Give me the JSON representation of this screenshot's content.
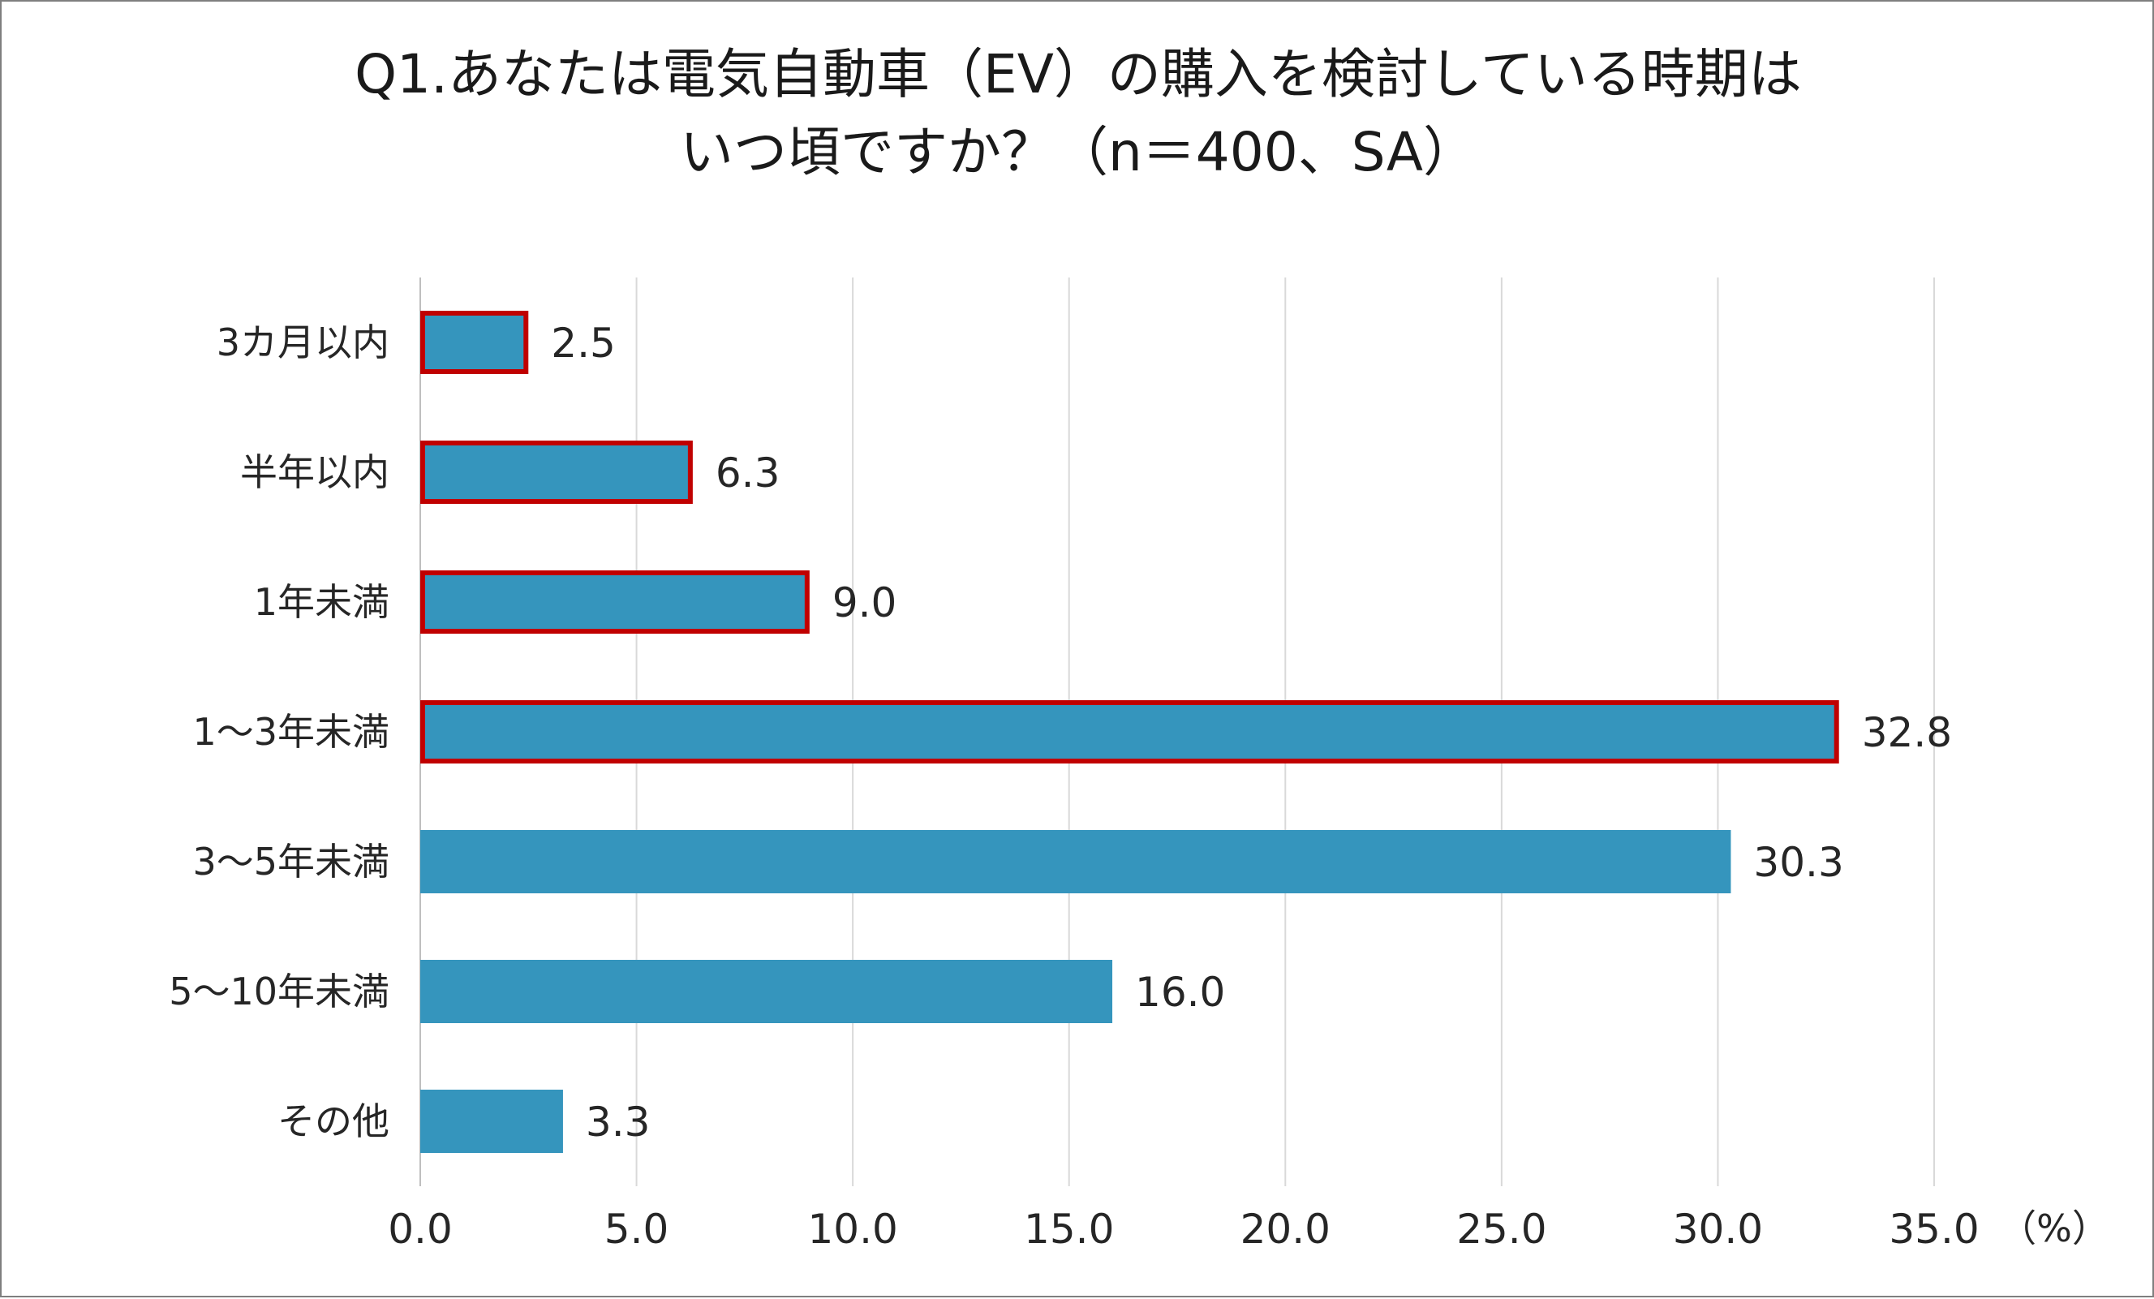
{
  "chart_data": {
    "type": "bar",
    "orientation": "horizontal",
    "title_lines": [
      "Q1.あなたは電気自動車（EV）の購入を検討している時期は",
      "いつ頃ですか？（n＝400、SA）"
    ],
    "categories": [
      "3カ月以内",
      "半年以内",
      "1年未満",
      "1～3年未満",
      "3～5年未満",
      "5～10年未満",
      "その他"
    ],
    "values": [
      2.5,
      6.3,
      9.0,
      32.8,
      30.3,
      16.0,
      3.3
    ],
    "value_labels": [
      "2.5",
      "6.3",
      "9.0",
      "32.8",
      "30.3",
      "16.0",
      "3.3"
    ],
    "highlighted": [
      true,
      true,
      true,
      true,
      false,
      false,
      false
    ],
    "x_ticks": [
      0,
      5,
      10,
      15,
      20,
      25,
      30,
      35
    ],
    "x_tick_labels": [
      "0.0",
      "5.0",
      "10.0",
      "15.0",
      "20.0",
      "25.0",
      "30.0",
      "35.0"
    ],
    "xlim": [
      0,
      35
    ],
    "unit_label": "（%）",
    "grid": true,
    "colors": {
      "bar": "#3595bd",
      "highlight_border": "#c00000",
      "grid": "#d9d9d9",
      "axis": "#bfbfbf",
      "text": "#262626"
    }
  }
}
